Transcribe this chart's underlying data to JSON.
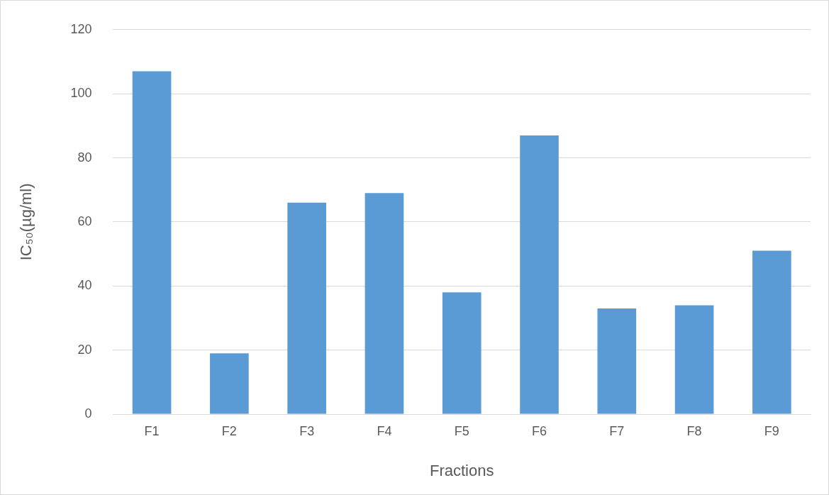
{
  "chart_data": {
    "type": "bar",
    "xlabel": "Fractions",
    "ylabel": "IC₅₀(µg/ml)",
    "categories": [
      "F1",
      "F2",
      "F3",
      "F4",
      "F5",
      "F6",
      "F7",
      "F8",
      "F9"
    ],
    "values": [
      107,
      19,
      66,
      69,
      38,
      87,
      33,
      34,
      51
    ],
    "color": "#5b9bd5",
    "ylim": [
      0,
      120
    ],
    "yticks": [
      0,
      20,
      40,
      60,
      80,
      100,
      120
    ],
    "grid": "y",
    "legend": false
  }
}
